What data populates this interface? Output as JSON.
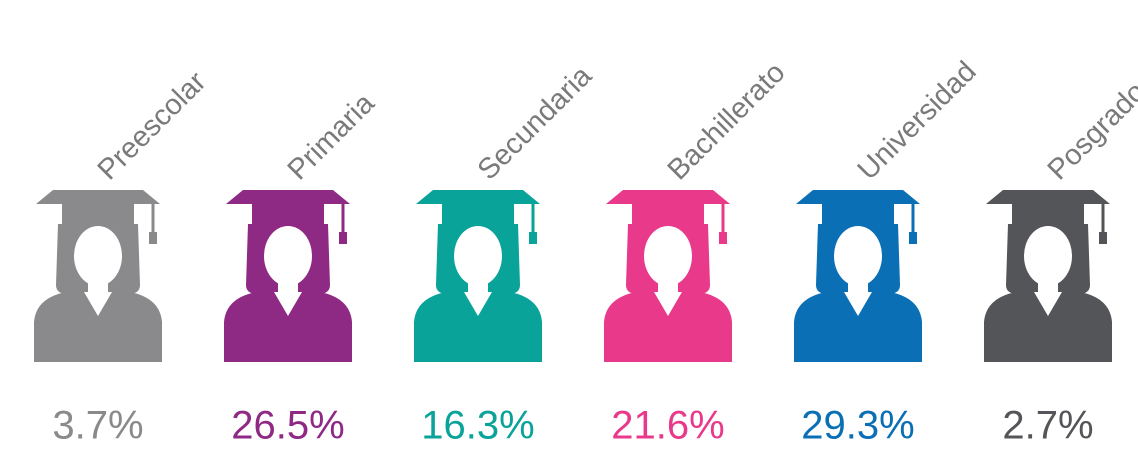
{
  "chart_data": {
    "type": "pictogram",
    "categories": [
      "Preescolar",
      "Primaria",
      "Secundaria",
      "Bachillerato",
      "Universidad",
      "Posgrado"
    ],
    "values": [
      3.7,
      26.5,
      16.3,
      21.6,
      29.3,
      2.7
    ],
    "value_labels": [
      "3.7%",
      "26.5%",
      "16.3%",
      "21.6%",
      "29.3%",
      "2.7%"
    ],
    "colors": [
      "#8a8a8c",
      "#8e2a84",
      "#0aa39a",
      "#e8398a",
      "#0a6fb5",
      "#545558"
    ]
  }
}
